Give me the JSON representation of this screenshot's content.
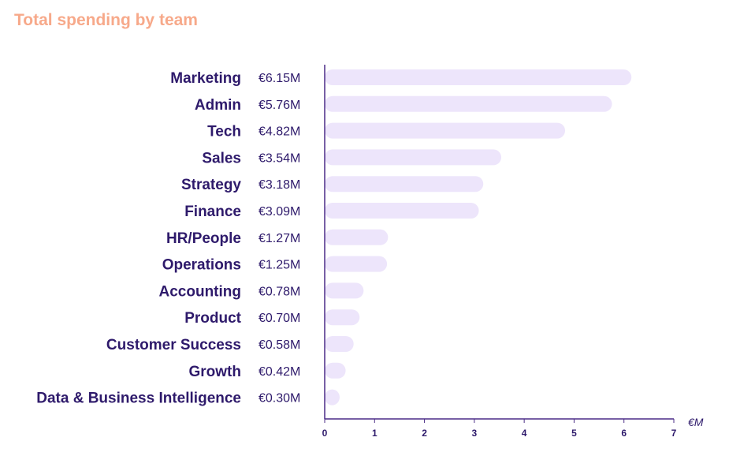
{
  "chart_data": {
    "type": "bar",
    "orientation": "horizontal",
    "title": "Total spending by team",
    "xlabel": "€M",
    "ylabel": "",
    "xlim": [
      0,
      7
    ],
    "xticks": [
      0,
      1,
      2,
      3,
      4,
      5,
      6,
      7
    ],
    "categories": [
      "Marketing",
      "Admin",
      "Tech",
      "Sales",
      "Strategy",
      "Finance",
      "HR/People",
      "Operations",
      "Accounting",
      "Product",
      "Customer Success",
      "Growth",
      "Data & Business Intelligence"
    ],
    "values": [
      6.15,
      5.76,
      4.82,
      3.54,
      3.18,
      3.09,
      1.27,
      1.25,
      0.78,
      0.7,
      0.58,
      0.42,
      0.3
    ],
    "value_labels": [
      "€6.15M",
      "€5.76M",
      "€4.82M",
      "€3.54M",
      "€3.18M",
      "€3.09M",
      "€1.27M",
      "€1.25M",
      "€0.78M",
      "€0.70M",
      "€0.58M",
      "€0.42M",
      "€0.30M"
    ],
    "grid": false,
    "colors": {
      "bar": "#ede5fb",
      "text": "#2e1a6b",
      "title": "#f7a98a",
      "axis": "#4b2c87"
    }
  }
}
